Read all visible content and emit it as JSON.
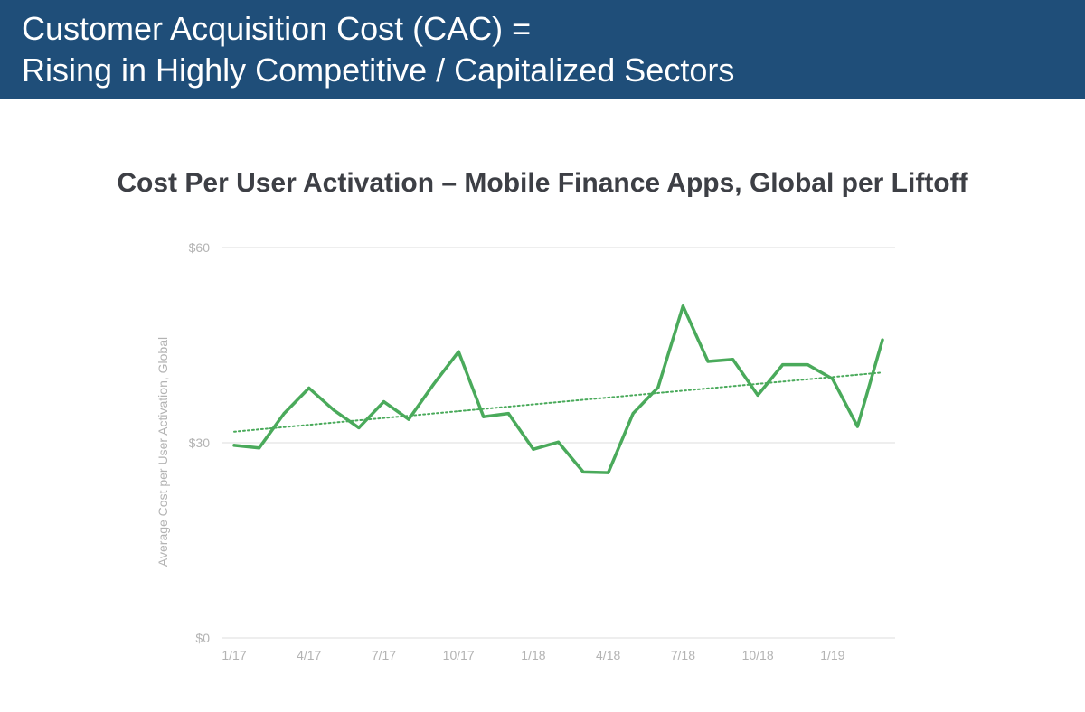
{
  "header": {
    "line1": "Customer Acquisition Cost (CAC) =",
    "line2": "Rising in Highly Competitive / Capitalized Sectors",
    "background": "#1f4e79"
  },
  "chart_data": {
    "type": "line",
    "title": "Cost Per User Activation – Mobile Finance Apps, Global per Liftoff",
    "ylabel": "Average Cost per User Activation, Global",
    "xlabel": "",
    "ylim": [
      0,
      60
    ],
    "y_ticks": [
      {
        "value": 60,
        "label": "$60"
      },
      {
        "value": 30,
        "label": "$30"
      },
      {
        "value": 0,
        "label": "$0"
      }
    ],
    "x_ticks": [
      {
        "index": 0,
        "label": "1/17"
      },
      {
        "index": 3,
        "label": "4/17"
      },
      {
        "index": 6,
        "label": "7/17"
      },
      {
        "index": 9,
        "label": "10/17"
      },
      {
        "index": 12,
        "label": "1/18"
      },
      {
        "index": 15,
        "label": "4/18"
      },
      {
        "index": 18,
        "label": "7/18"
      },
      {
        "index": 21,
        "label": "10/18"
      },
      {
        "index": 24,
        "label": "1/19"
      }
    ],
    "x": [
      "1/17",
      "2/17",
      "3/17",
      "4/17",
      "5/17",
      "6/17",
      "7/17",
      "8/17",
      "9/17",
      "10/17",
      "11/17",
      "12/17",
      "1/18",
      "2/18",
      "3/18",
      "4/18",
      "5/18",
      "6/18",
      "7/18",
      "8/18",
      "9/18",
      "10/18",
      "11/18",
      "12/18",
      "1/19",
      "2/19",
      "3/19"
    ],
    "series": [
      {
        "values": [
          29.6,
          29.2,
          34.5,
          38.4,
          35.0,
          32.3,
          36.3,
          33.6,
          39.0,
          44.0,
          34.0,
          34.5,
          29.0,
          30.1,
          25.5,
          25.4,
          34.5,
          38.5,
          51.0,
          42.5,
          42.8,
          37.3,
          42.0,
          42.0,
          39.8,
          32.5,
          45.8
        ],
        "color": "#4aaa5b"
      }
    ],
    "trendline": {
      "start": 31.7,
      "end": 40.8,
      "color": "#4aaa5b",
      "style": "dotted"
    },
    "grid": true,
    "legend": "none"
  }
}
